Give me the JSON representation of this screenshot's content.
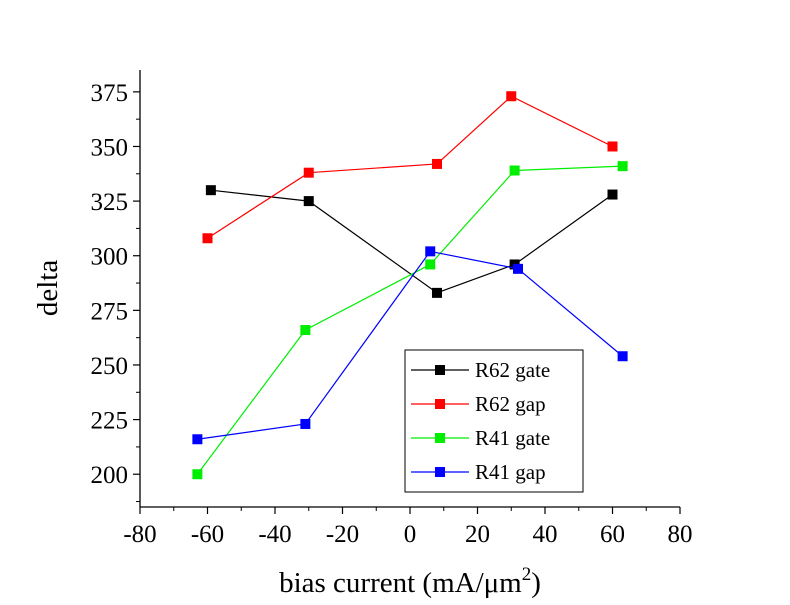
{
  "chart_data": {
    "type": "line",
    "title": "",
    "xlabel": "bias current (mA/μm",
    "xlabel_sup": "2",
    "xlabel_end": ")",
    "ylabel": "delta",
    "xlim": [
      -80,
      80
    ],
    "ylim": [
      185,
      385
    ],
    "xticks": [
      -80,
      -60,
      -40,
      -20,
      0,
      20,
      40,
      60,
      80
    ],
    "xtick_labels": [
      "-80",
      "-60",
      "-40",
      "-20",
      "0",
      "20",
      "40",
      "60",
      "80"
    ],
    "yticks": [
      200,
      225,
      250,
      275,
      300,
      325,
      350,
      375
    ],
    "ytick_labels": [
      "200",
      "225",
      "250",
      "275",
      "300",
      "325",
      "350",
      "375"
    ],
    "grid": false,
    "legend_position": "bottom-right",
    "series": [
      {
        "name": "R62 gate",
        "color": "#000000",
        "x": [
          -59,
          -30,
          8,
          31,
          60
        ],
        "y": [
          330,
          325,
          283,
          296,
          328
        ]
      },
      {
        "name": "R62 gap",
        "color": "#ff0000",
        "x": [
          -60,
          -30,
          8,
          30,
          60
        ],
        "y": [
          308,
          338,
          342,
          373,
          350
        ]
      },
      {
        "name": "R41 gate",
        "color": "#00ee00",
        "x": [
          -63,
          -31,
          6,
          31,
          63
        ],
        "y": [
          200,
          266,
          296,
          339,
          341
        ]
      },
      {
        "name": "R41 gap",
        "color": "#0000ff",
        "x": [
          -63,
          -31,
          6,
          32,
          63
        ],
        "y": [
          216,
          223,
          302,
          294,
          254
        ]
      }
    ]
  }
}
